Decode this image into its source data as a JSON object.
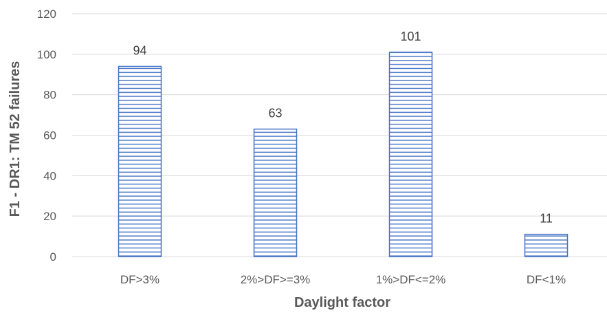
{
  "chart_data": {
    "type": "bar",
    "title": "",
    "xlabel": "Daylight factor",
    "ylabel": "F1 - DR1: TM 52 failures",
    "categories": [
      "DF>3%",
      "2%>DF>=3%",
      "1%>DF<=2%",
      "DF<1%"
    ],
    "values": [
      94,
      63,
      101,
      11
    ],
    "ylim": [
      0,
      120
    ],
    "yticks": [
      0,
      20,
      40,
      60,
      80,
      100,
      120
    ],
    "grid": true,
    "data_labels": true,
    "bar_fill": "horizontal-hatch",
    "colors": {
      "bar": "#4472C4",
      "grid": "#d9d9d9",
      "text": "#595959"
    }
  }
}
